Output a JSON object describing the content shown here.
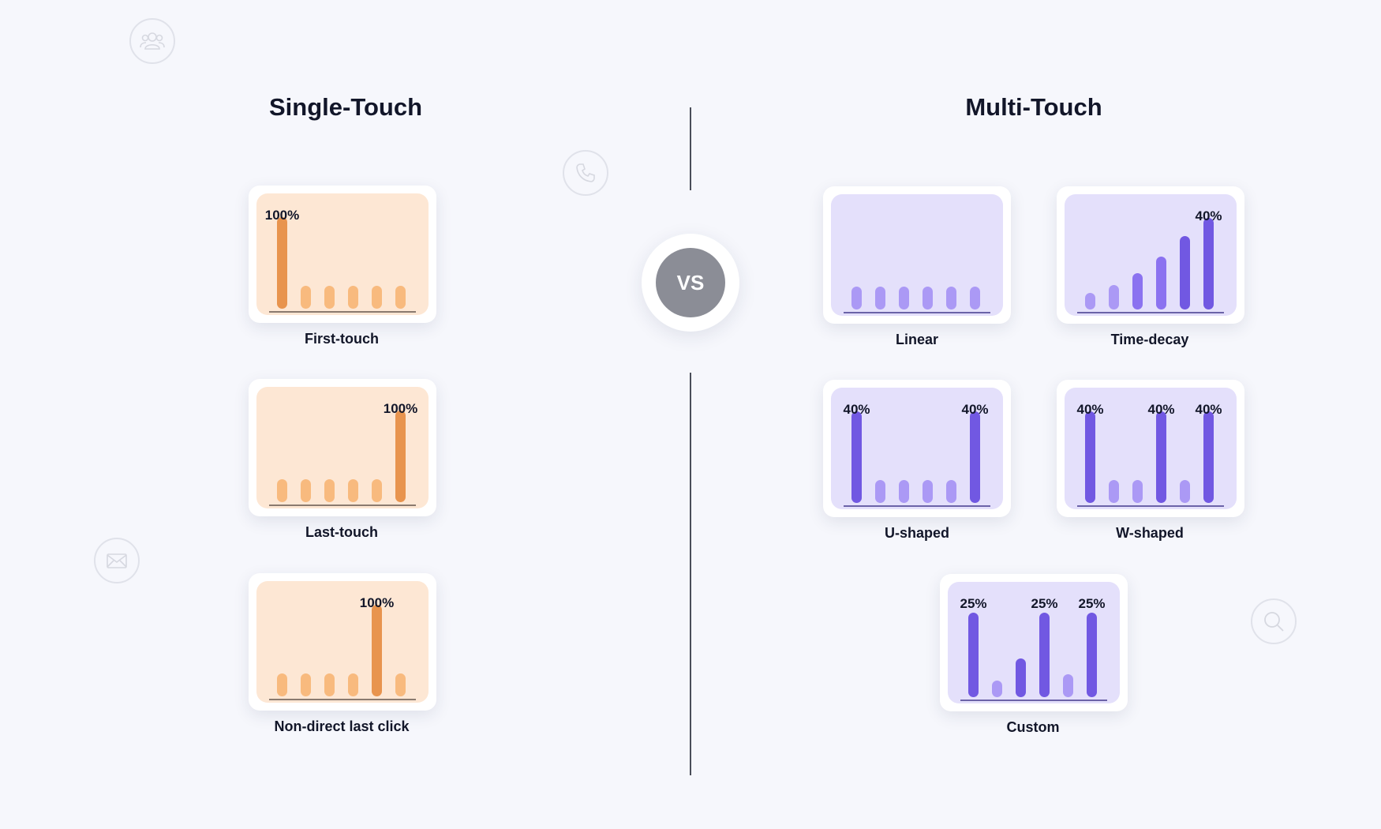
{
  "titles": {
    "single": "Single-Touch",
    "multi": "Multi-Touch"
  },
  "vs_label": "VS",
  "colors": {
    "orange_bg": "#fde7d4",
    "orange_highlight": "#e8944e",
    "orange_bar": "#f8ba7e",
    "orange_axis": "#8a7a6f",
    "purple_bg": "#e4e0fb",
    "purple_highlight": "#7158e2",
    "purple_mid": "#8b72f0",
    "purple_bar": "#ab99f5",
    "purple_axis": "#6b63a8"
  },
  "decorative_icons": [
    "users-icon",
    "phone-icon",
    "mail-icon",
    "search-icon"
  ],
  "models": [
    {
      "key": "first-touch",
      "label": "First-touch",
      "theme": "orange",
      "weights": [
        1.0,
        0.25,
        0.25,
        0.25,
        0.25,
        0.25
      ],
      "highlight": [
        true,
        false,
        false,
        false,
        false,
        false
      ],
      "labels": [
        {
          "bar": 0,
          "text": "100%"
        }
      ]
    },
    {
      "key": "last-touch",
      "label": "Last-touch",
      "theme": "orange",
      "weights": [
        0.25,
        0.25,
        0.25,
        0.25,
        0.25,
        1.0
      ],
      "highlight": [
        false,
        false,
        false,
        false,
        false,
        true
      ],
      "labels": [
        {
          "bar": 5,
          "text": "100%"
        }
      ]
    },
    {
      "key": "non-direct-last-click",
      "label": "Non-direct last click",
      "theme": "orange",
      "weights": [
        0.25,
        0.25,
        0.25,
        0.25,
        1.0,
        0.25
      ],
      "highlight": [
        false,
        false,
        false,
        false,
        true,
        false
      ],
      "labels": [
        {
          "bar": 4,
          "text": "100%"
        }
      ]
    },
    {
      "key": "linear",
      "label": "Linear",
      "theme": "purple",
      "weights": [
        0.25,
        0.25,
        0.25,
        0.25,
        0.25,
        0.25
      ],
      "highlight": [
        false,
        false,
        false,
        false,
        false,
        false
      ],
      "labels": []
    },
    {
      "key": "time-decay",
      "label": "Time-decay",
      "theme": "purple",
      "weights": [
        0.18,
        0.27,
        0.4,
        0.58,
        0.8,
        1.0
      ],
      "highlight": [
        false,
        false,
        "mid",
        "mid",
        true,
        true
      ],
      "labels": [
        {
          "bar": 5,
          "text": "40%"
        }
      ]
    },
    {
      "key": "u-shaped",
      "label": "U-shaped",
      "theme": "purple",
      "weights": [
        1.0,
        0.25,
        0.25,
        0.25,
        0.25,
        1.0
      ],
      "highlight": [
        true,
        false,
        false,
        false,
        false,
        true
      ],
      "labels": [
        {
          "bar": 0,
          "text": "40%"
        },
        {
          "bar": 5,
          "text": "40%"
        }
      ]
    },
    {
      "key": "w-shaped",
      "label": "W-shaped",
      "theme": "purple",
      "weights": [
        1.0,
        0.25,
        0.25,
        1.0,
        0.25,
        1.0
      ],
      "highlight": [
        true,
        false,
        false,
        true,
        false,
        true
      ],
      "labels": [
        {
          "bar": 0,
          "text": "40%"
        },
        {
          "bar": 3,
          "text": "40%"
        },
        {
          "bar": 5,
          "text": "40%"
        }
      ]
    },
    {
      "key": "custom",
      "label": "Custom",
      "theme": "purple",
      "weights": [
        0.92,
        0.18,
        0.42,
        0.92,
        0.25,
        0.92
      ],
      "highlight": [
        true,
        false,
        true,
        true,
        false,
        true
      ],
      "labels": [
        {
          "bar": 0,
          "text": "25%"
        },
        {
          "bar": 3,
          "text": "25%"
        },
        {
          "bar": 5,
          "text": "25%"
        }
      ]
    }
  ]
}
